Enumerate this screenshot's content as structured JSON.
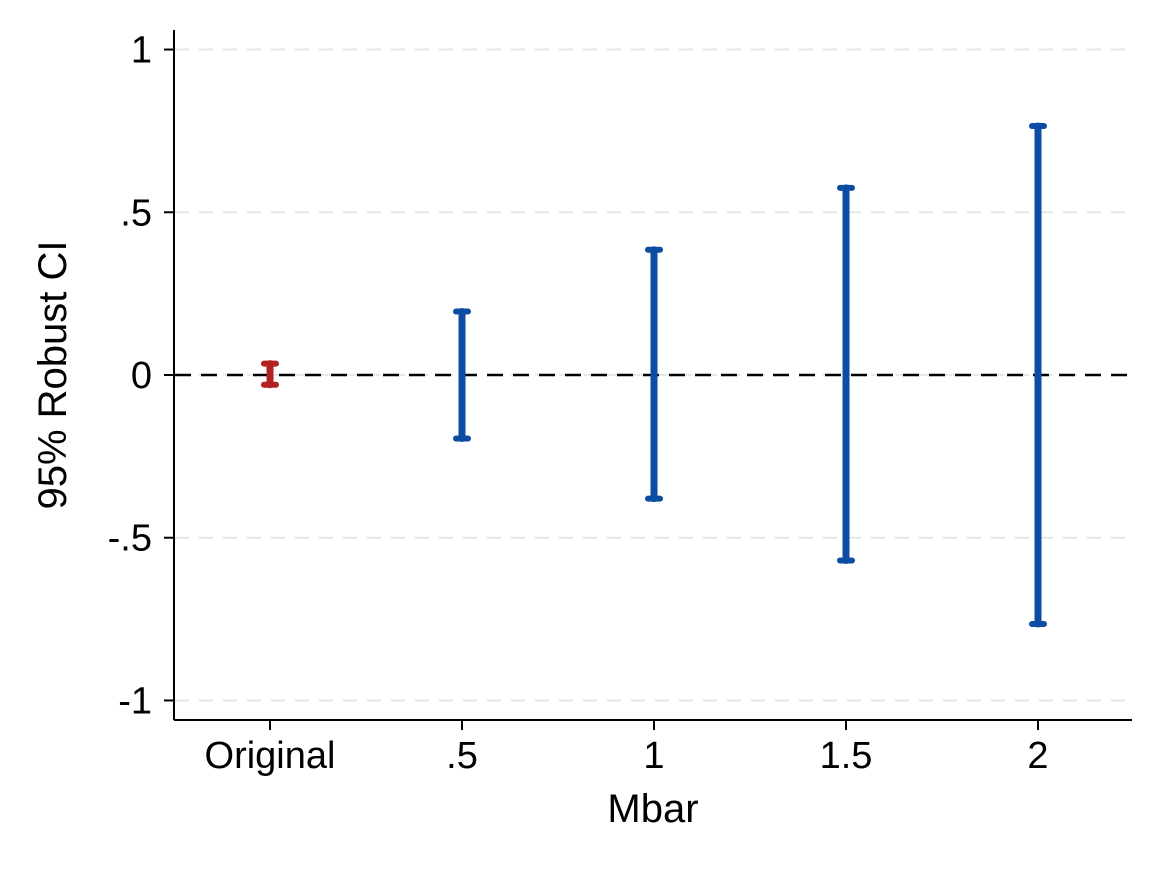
{
  "chart_data": {
    "type": "errorbar",
    "title": "",
    "xlabel": "Mbar",
    "ylabel": "95% Robust CI",
    "categories": [
      "Original",
      ".5",
      "1",
      "1.5",
      "2"
    ],
    "intervals": [
      {
        "category": "Original",
        "lower": -0.03,
        "upper": 0.035,
        "color": "#b22222"
      },
      {
        "category": ".5",
        "lower": -0.195,
        "upper": 0.195,
        "color": "#0d4ca3"
      },
      {
        "category": "1",
        "lower": -0.38,
        "upper": 0.385,
        "color": "#0d4ca3"
      },
      {
        "category": "1.5",
        "lower": -0.57,
        "upper": 0.575,
        "color": "#0d4ca3"
      },
      {
        "category": "2",
        "lower": -0.765,
        "upper": 0.765,
        "color": "#0d4ca3"
      }
    ],
    "ylim": [
      -1.06,
      1.06
    ],
    "yticks": [
      1,
      0.5,
      0,
      -0.5,
      -1
    ],
    "ytick_labels": [
      "1",
      ".5",
      "0",
      "-.5",
      "-1"
    ],
    "reference_line": {
      "y": 0,
      "style": "dashed",
      "color": "#000000"
    },
    "grid": {
      "y": true,
      "style": "dashed",
      "color": "#e6e6e6"
    },
    "legend": "none"
  }
}
